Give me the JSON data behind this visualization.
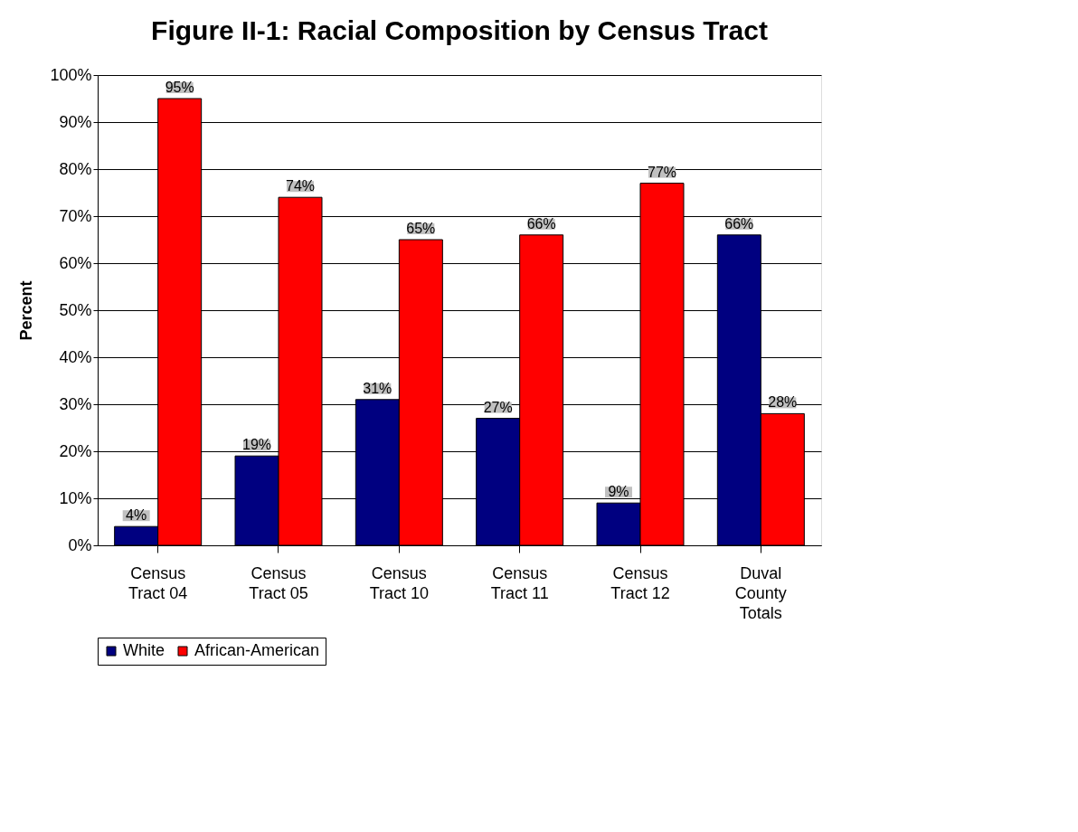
{
  "chart_data": {
    "type": "bar",
    "title": "Figure II-1: Racial Composition by Census Tract",
    "ylabel": "Percent",
    "categories": [
      "Census\nTract 04",
      "Census\nTract 05",
      "Census\nTract 10",
      "Census\nTract 11",
      "Census\nTract 12",
      "Duval\nCounty\nTotals"
    ],
    "series": [
      {
        "name": "White",
        "color": "#000080",
        "values": [
          4,
          19,
          31,
          27,
          9,
          66
        ],
        "value_labels": [
          "4%",
          "19%",
          "31%",
          "27%",
          "9%",
          "66%"
        ]
      },
      {
        "name": "African-American",
        "color": "#ff0000",
        "values": [
          95,
          74,
          65,
          66,
          77,
          28
        ],
        "value_labels": [
          "95%",
          "74%",
          "65%",
          "66%",
          "77%",
          "28%"
        ]
      }
    ],
    "ylim": [
      0,
      100
    ],
    "yticks": [
      {
        "value": 0,
        "label": "0%"
      },
      {
        "value": 10,
        "label": "10%"
      },
      {
        "value": 20,
        "label": "20%"
      },
      {
        "value": 30,
        "label": "30%"
      },
      {
        "value": 40,
        "label": "40%"
      },
      {
        "value": 50,
        "label": "50%"
      },
      {
        "value": 60,
        "label": "60%"
      },
      {
        "value": 70,
        "label": "70%"
      },
      {
        "value": 80,
        "label": "80%"
      },
      {
        "value": 90,
        "label": "90%"
      },
      {
        "value": 100,
        "label": "100%"
      }
    ],
    "grid": "y",
    "legend": "bottom"
  }
}
